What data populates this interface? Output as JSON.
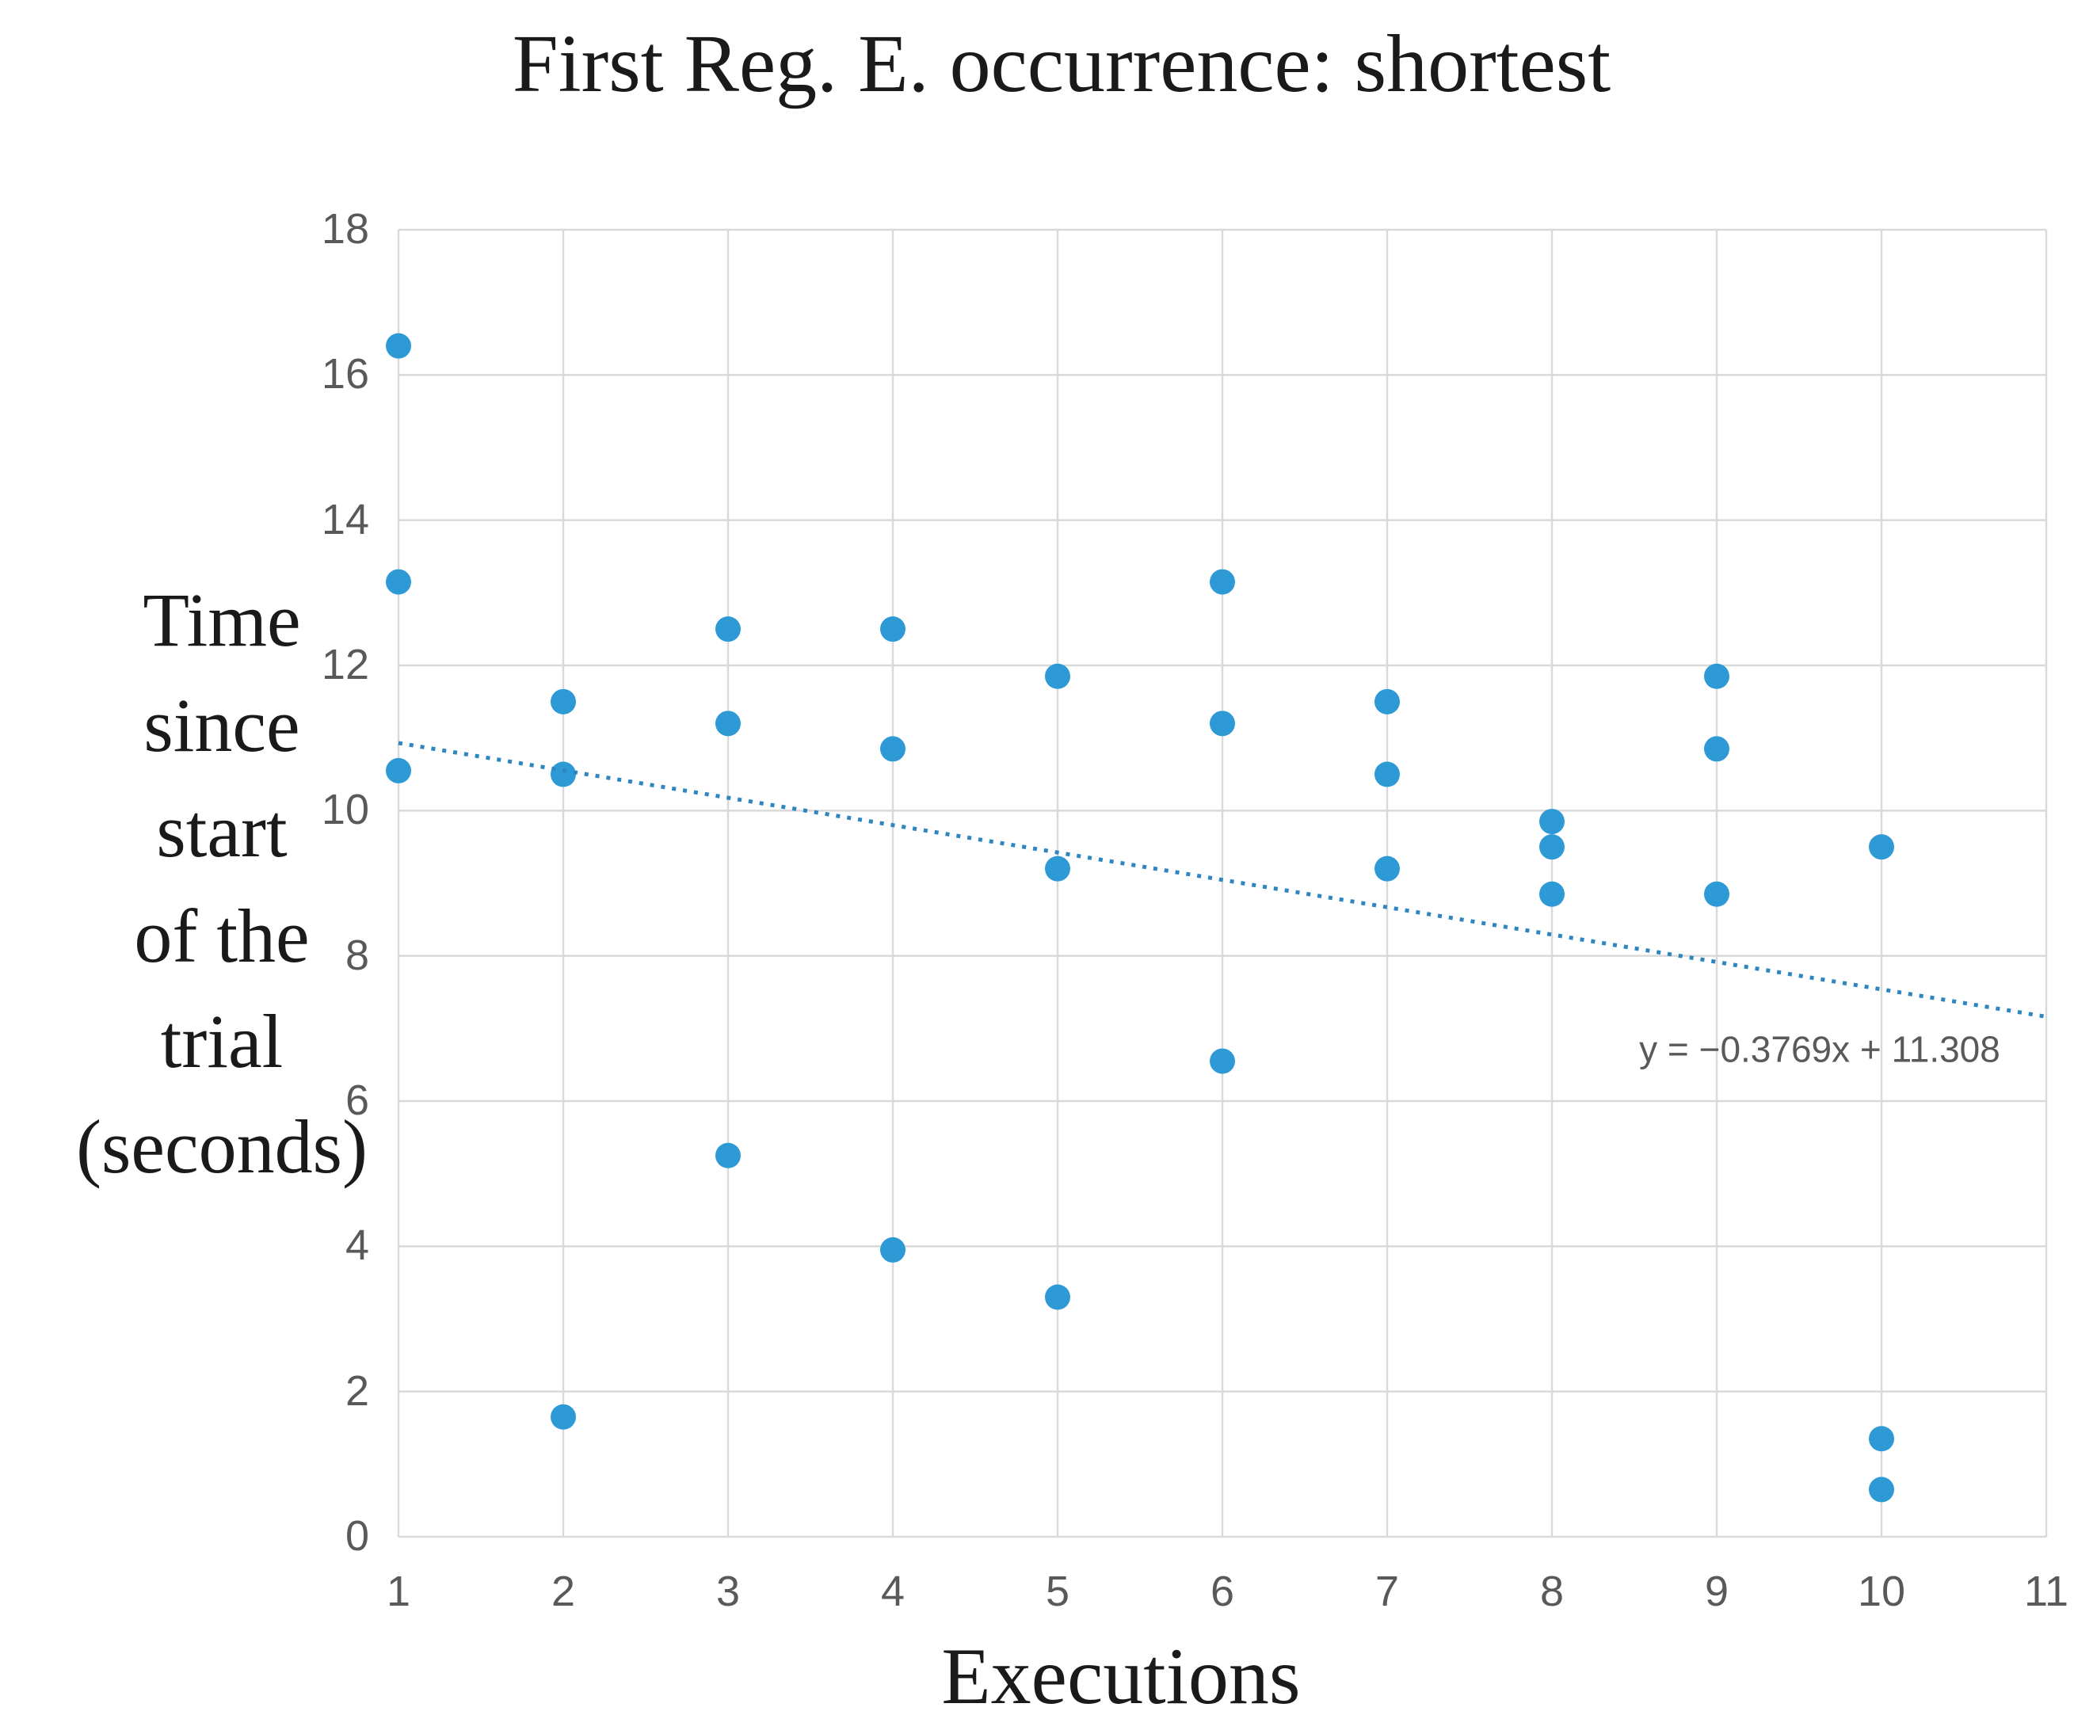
{
  "chart_data": {
    "type": "scatter",
    "title": "First Reg. E. occurrence: shortest",
    "xlabel": "Executions",
    "ylabel": "Time since start of the trial (seconds)",
    "ylabel_lines": [
      "Time",
      "since",
      "start",
      "of the",
      "trial",
      "(seconds)"
    ],
    "xlim": [
      1,
      11
    ],
    "ylim": [
      0,
      18
    ],
    "x_ticks": [
      1,
      2,
      3,
      4,
      5,
      6,
      7,
      8,
      9,
      10,
      11
    ],
    "y_ticks": [
      0,
      2,
      4,
      6,
      8,
      10,
      12,
      14,
      16,
      18
    ],
    "grid": true,
    "legend": "none",
    "series": [
      {
        "name": "First Reg. E. occurrence (shortest)",
        "marker": "circle",
        "points": [
          [
            1,
            16.4
          ],
          [
            1,
            13.15
          ],
          [
            1,
            10.55
          ],
          [
            2,
            11.5
          ],
          [
            2,
            10.5
          ],
          [
            2,
            1.65
          ],
          [
            3,
            12.5
          ],
          [
            3,
            11.2
          ],
          [
            3,
            5.25
          ],
          [
            4,
            12.5
          ],
          [
            4,
            10.85
          ],
          [
            4,
            3.95
          ],
          [
            5,
            11.85
          ],
          [
            5,
            9.2
          ],
          [
            5,
            3.3
          ],
          [
            6,
            13.15
          ],
          [
            6,
            11.2
          ],
          [
            6,
            6.55
          ],
          [
            7,
            11.5
          ],
          [
            7,
            10.5
          ],
          [
            7,
            9.2
          ],
          [
            8,
            9.85
          ],
          [
            8,
            9.5
          ],
          [
            8,
            8.85
          ],
          [
            9,
            11.85
          ],
          [
            9,
            10.85
          ],
          [
            9,
            8.85
          ],
          [
            10,
            9.5
          ],
          [
            10,
            1.35
          ],
          [
            10,
            0.65
          ]
        ]
      }
    ],
    "trendline": {
      "equation": "y = −0.3769x + 11.308",
      "slope": -0.3769,
      "intercept": 11.308,
      "x_range": [
        1,
        11
      ],
      "style": "dotted"
    },
    "colors": {
      "point": "#2D9AD6",
      "trendline": "#2E86C1",
      "gridline": "#D9D9D9",
      "axis_line": "#D9D9D9",
      "tick_text": "#595959",
      "equation_text": "#595959",
      "title_text": "#1A1A1A"
    }
  }
}
